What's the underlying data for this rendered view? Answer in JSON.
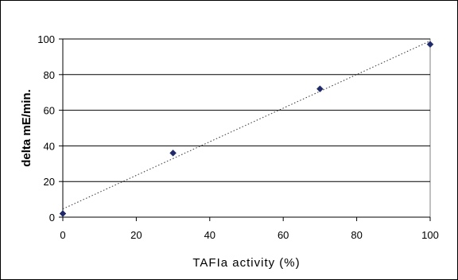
{
  "chart_data": {
    "type": "scatter",
    "xlabel": "TAFIa activity (%)",
    "ylabel": "delta mE/min.",
    "xlim": [
      0,
      100
    ],
    "ylim": [
      0,
      100
    ],
    "x_ticks": [
      0,
      20,
      40,
      60,
      80,
      100
    ],
    "y_ticks": [
      0,
      20,
      40,
      60,
      80,
      100
    ],
    "grid": "horizontal",
    "trendline": "linear, dotted",
    "marker": "diamond",
    "colors": {
      "marker": "#1f2a6b",
      "grid": "#000000",
      "trendline": "#333333"
    },
    "series": [
      {
        "x": [
          0,
          30,
          70,
          100
        ],
        "y": [
          2,
          36,
          72,
          97
        ]
      }
    ]
  }
}
